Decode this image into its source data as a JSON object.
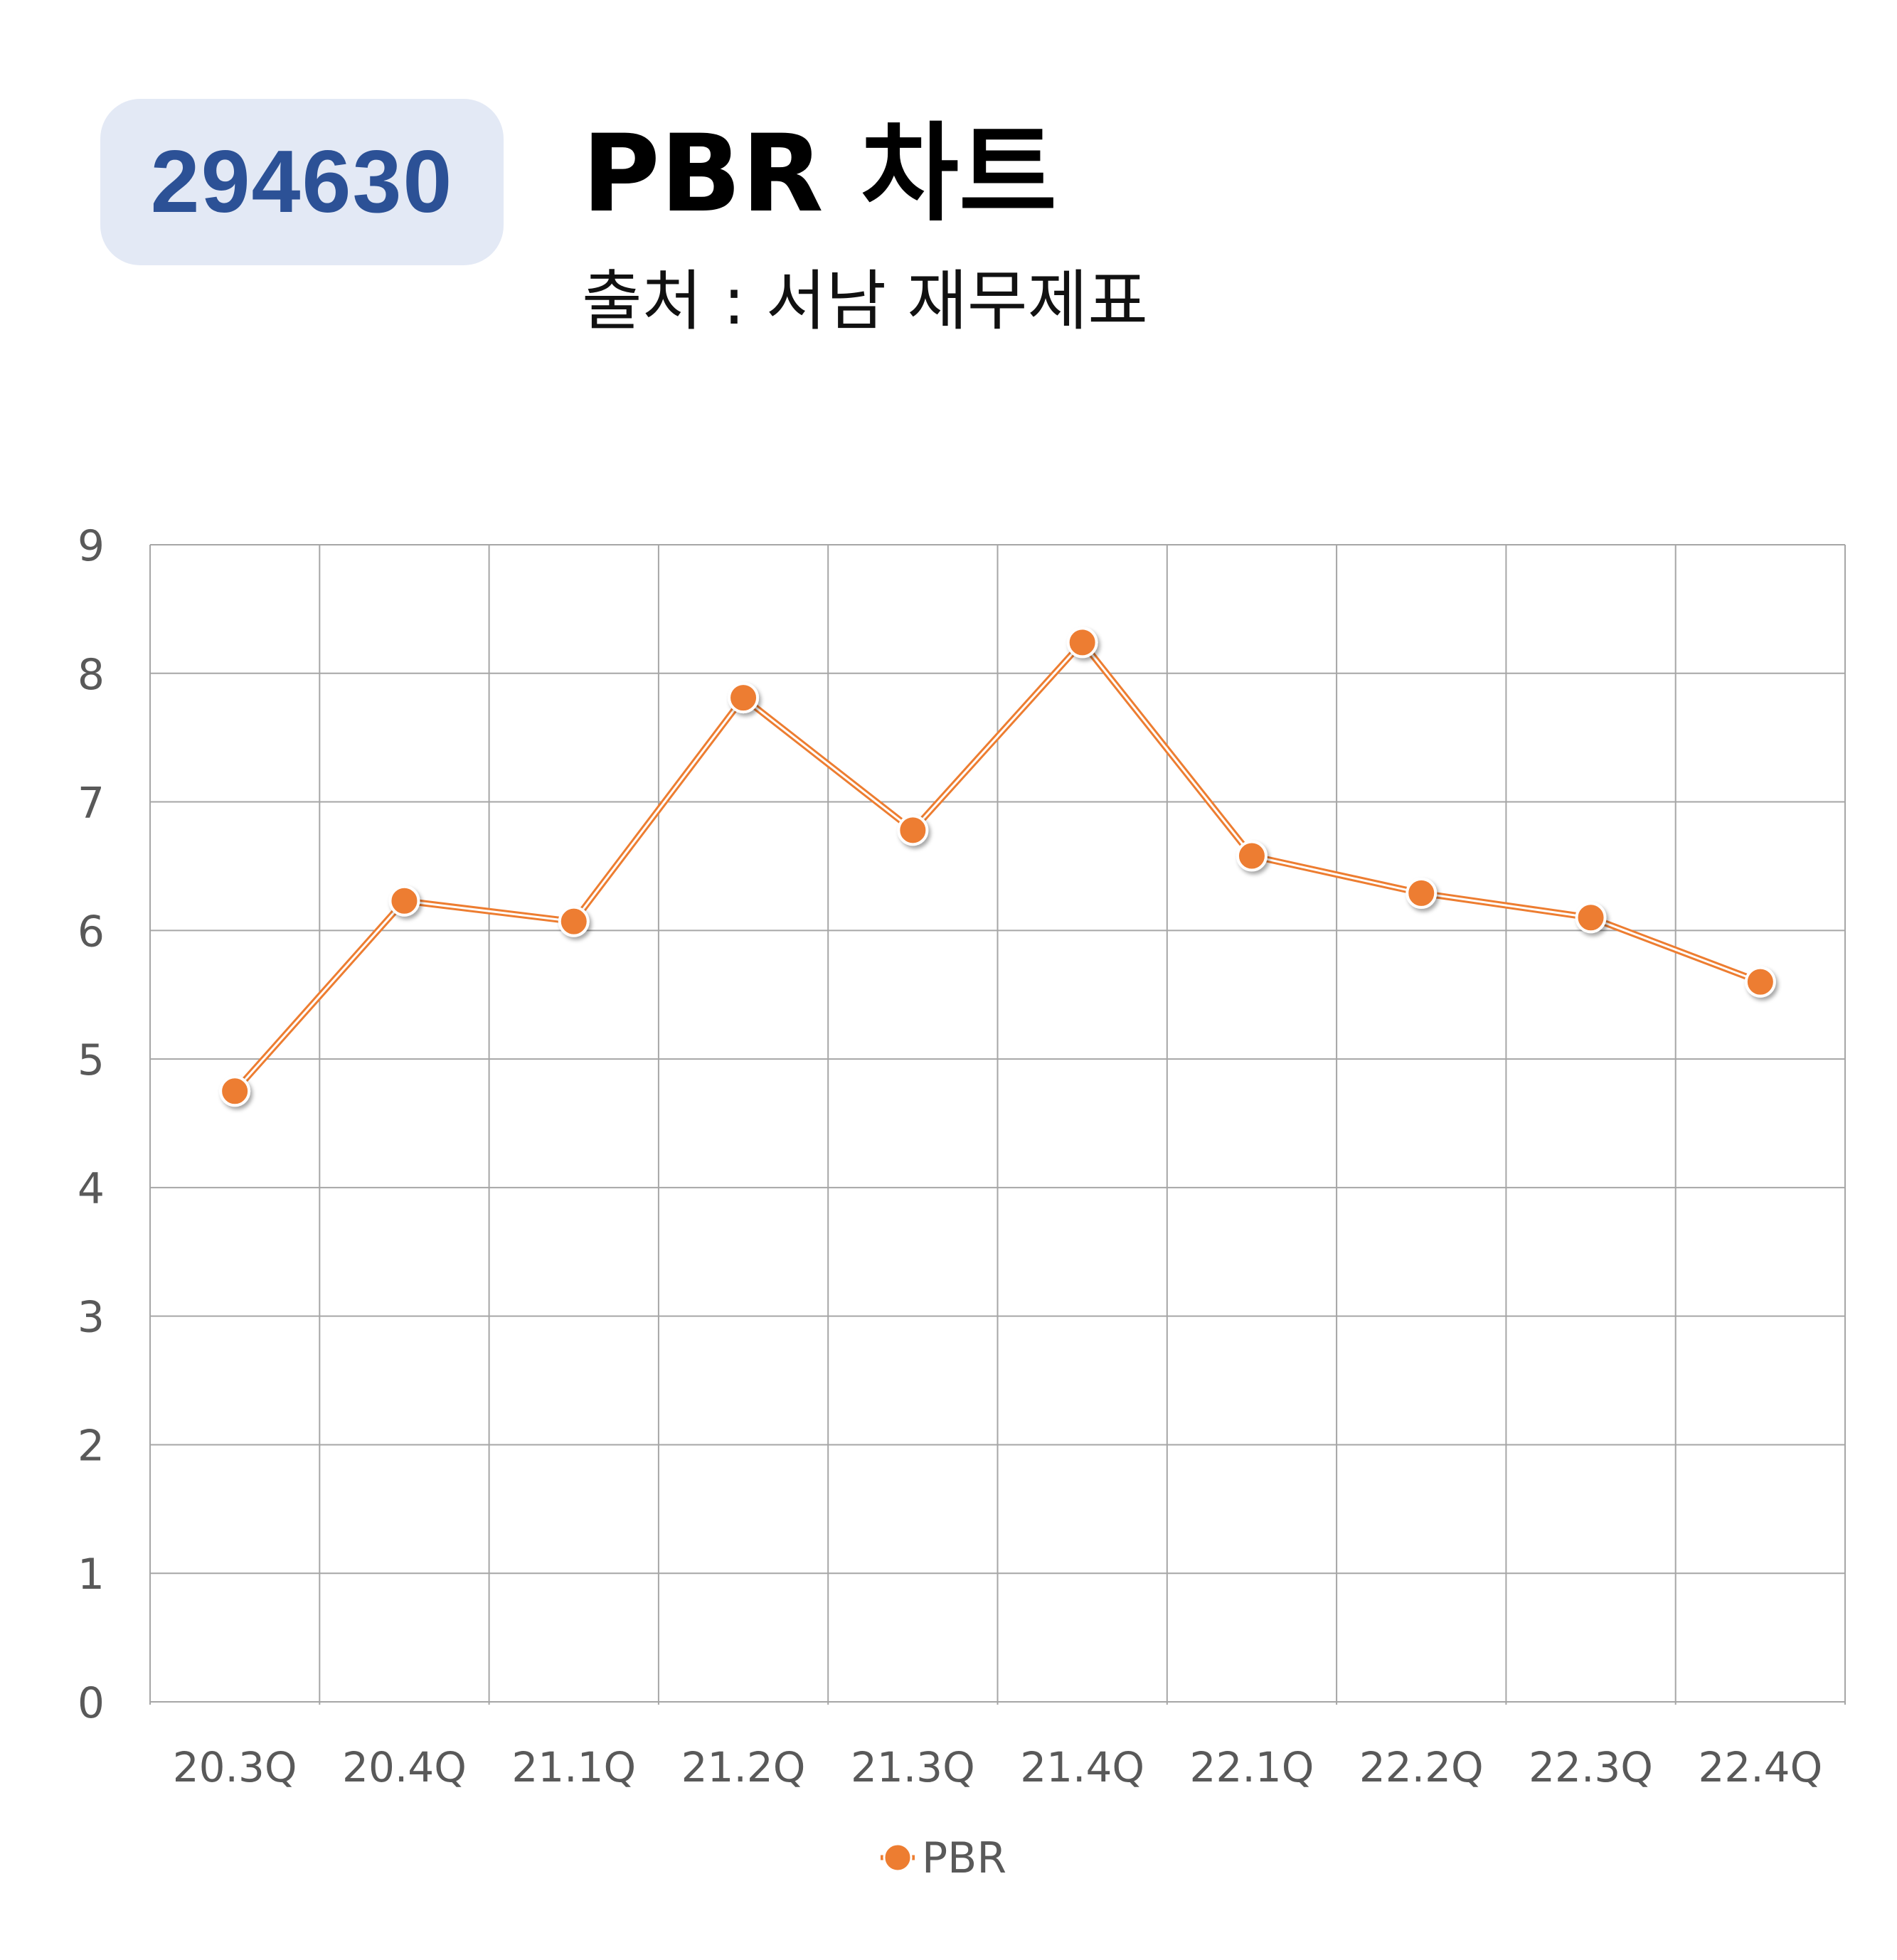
{
  "header": {
    "code": "294630",
    "title": "PBR 차트",
    "subtitle": "출처 : 서남 재무제표"
  },
  "colors": {
    "badge_bg": "#e3e9f5",
    "badge_text": "#2c5196",
    "series": "#ed7d31",
    "grid": "#a6a6a6",
    "tick_text": "#595959"
  },
  "chart_data": {
    "type": "line",
    "title": "PBR 차트",
    "xlabel": "",
    "ylabel": "",
    "categories": [
      "20.3Q",
      "20.4Q",
      "21.1Q",
      "21.2Q",
      "21.3Q",
      "21.4Q",
      "22.1Q",
      "22.2Q",
      "22.3Q",
      "22.4Q"
    ],
    "series": [
      {
        "name": "PBR",
        "values": [
          4.75,
          6.23,
          6.07,
          7.81,
          6.78,
          8.24,
          6.58,
          6.29,
          6.1,
          5.6
        ]
      }
    ],
    "ylim": [
      0,
      9
    ],
    "yticks": [
      "0",
      "1",
      "2",
      "3",
      "4",
      "5",
      "6",
      "7",
      "8",
      "9"
    ],
    "grid": true,
    "legend": "bottom"
  }
}
